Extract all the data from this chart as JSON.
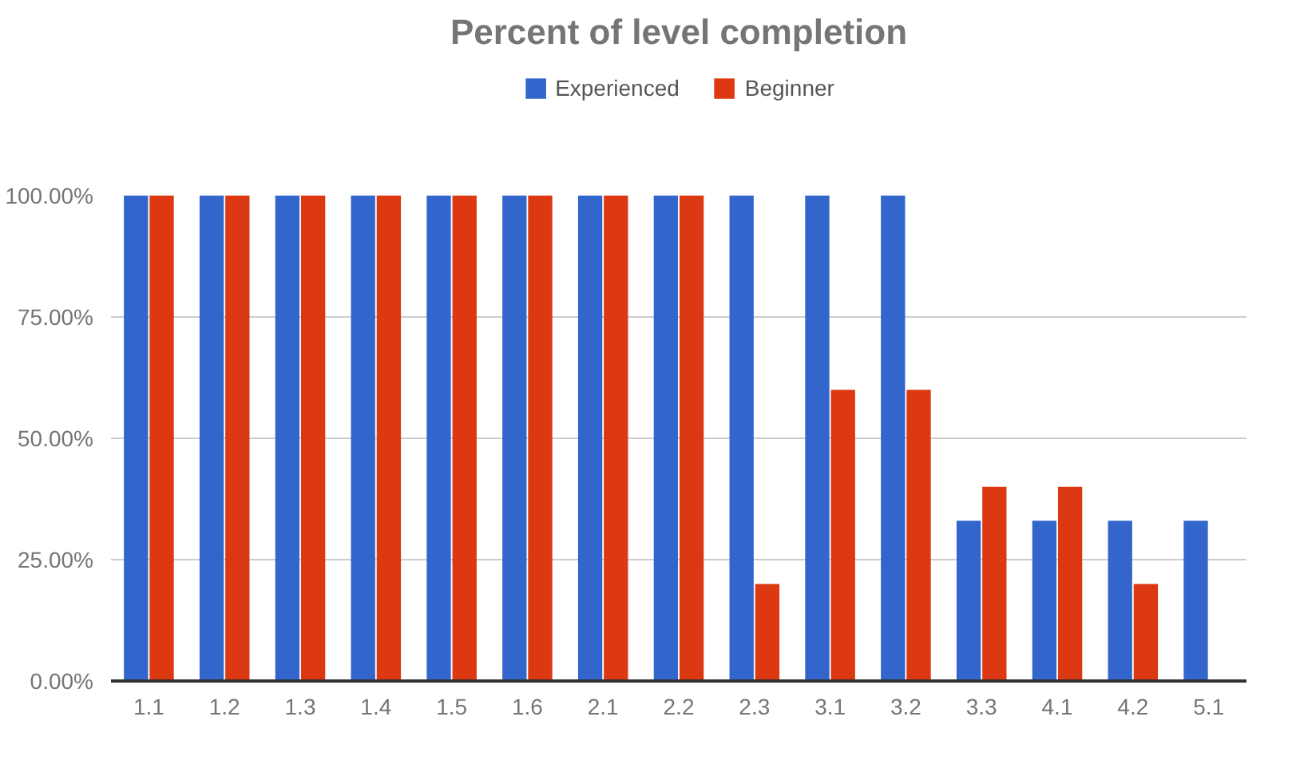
{
  "chart_data": {
    "type": "bar",
    "title": "Percent of level completion",
    "categories": [
      "1.1",
      "1.2",
      "1.3",
      "1.4",
      "1.5",
      "1.6",
      "2.1",
      "2.2",
      "2.3",
      "3.1",
      "3.2",
      "3.3",
      "4.1",
      "4.2",
      "5.1"
    ],
    "series": [
      {
        "name": "Experienced",
        "color": "#3366cc",
        "values": [
          100,
          100,
          100,
          100,
          100,
          100,
          100,
          100,
          100,
          100,
          100,
          33,
          33,
          33,
          33
        ]
      },
      {
        "name": "Beginner",
        "color": "#dc3912",
        "values": [
          100,
          100,
          100,
          100,
          100,
          100,
          100,
          100,
          20,
          60,
          60,
          40,
          40,
          20,
          null
        ]
      }
    ],
    "ylim": [
      0,
      100
    ],
    "yticks": [
      {
        "value": 0,
        "label": "0.00%"
      },
      {
        "value": 25,
        "label": "25.00%"
      },
      {
        "value": 50,
        "label": "50.00%"
      },
      {
        "value": 75,
        "label": "75.00%"
      },
      {
        "value": 100,
        "label": "100.00%"
      }
    ],
    "grid": "y",
    "legend": "top"
  }
}
